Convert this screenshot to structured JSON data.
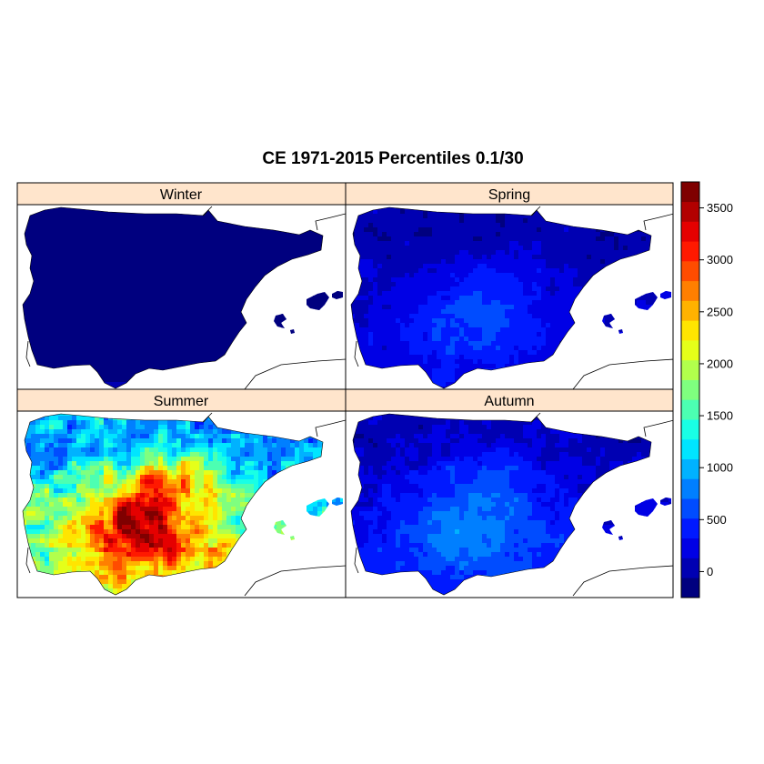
{
  "title": "CE 1971-2015 Percentiles 0.1/30",
  "panels": [
    {
      "label": "Winter",
      "level": 0.0,
      "spread": 0.0
    },
    {
      "label": "Spring",
      "level": 0.12,
      "spread": 0.1
    },
    {
      "label": "Summer",
      "level": 0.55,
      "spread": 0.45
    },
    {
      "label": "Autumn",
      "level": 0.16,
      "spread": 0.14
    }
  ],
  "colorbar": {
    "colors": [
      "#00007F",
      "#0000B2",
      "#0000E5",
      "#0019FF",
      "#004CFF",
      "#007FFF",
      "#00B2FF",
      "#00E5FF",
      "#19FFE5",
      "#4CFFB2",
      "#7FFF7F",
      "#B2FF4C",
      "#E5FF19",
      "#FFE500",
      "#FFB200",
      "#FF7F00",
      "#FF4C00",
      "#FF1900",
      "#E50000",
      "#B20000",
      "#7F0000"
    ],
    "min": -250,
    "max": 3750,
    "ticks": [
      {
        "value": 0,
        "label": "0"
      },
      {
        "value": 500,
        "label": "500"
      },
      {
        "value": 1000,
        "label": "1000"
      },
      {
        "value": 1500,
        "label": "1500"
      },
      {
        "value": 2000,
        "label": "2000"
      },
      {
        "value": 2500,
        "label": "2500"
      },
      {
        "value": 3000,
        "label": "3000"
      },
      {
        "value": 3500,
        "label": "3500"
      }
    ]
  },
  "strip_color": "#FFE5CC"
}
